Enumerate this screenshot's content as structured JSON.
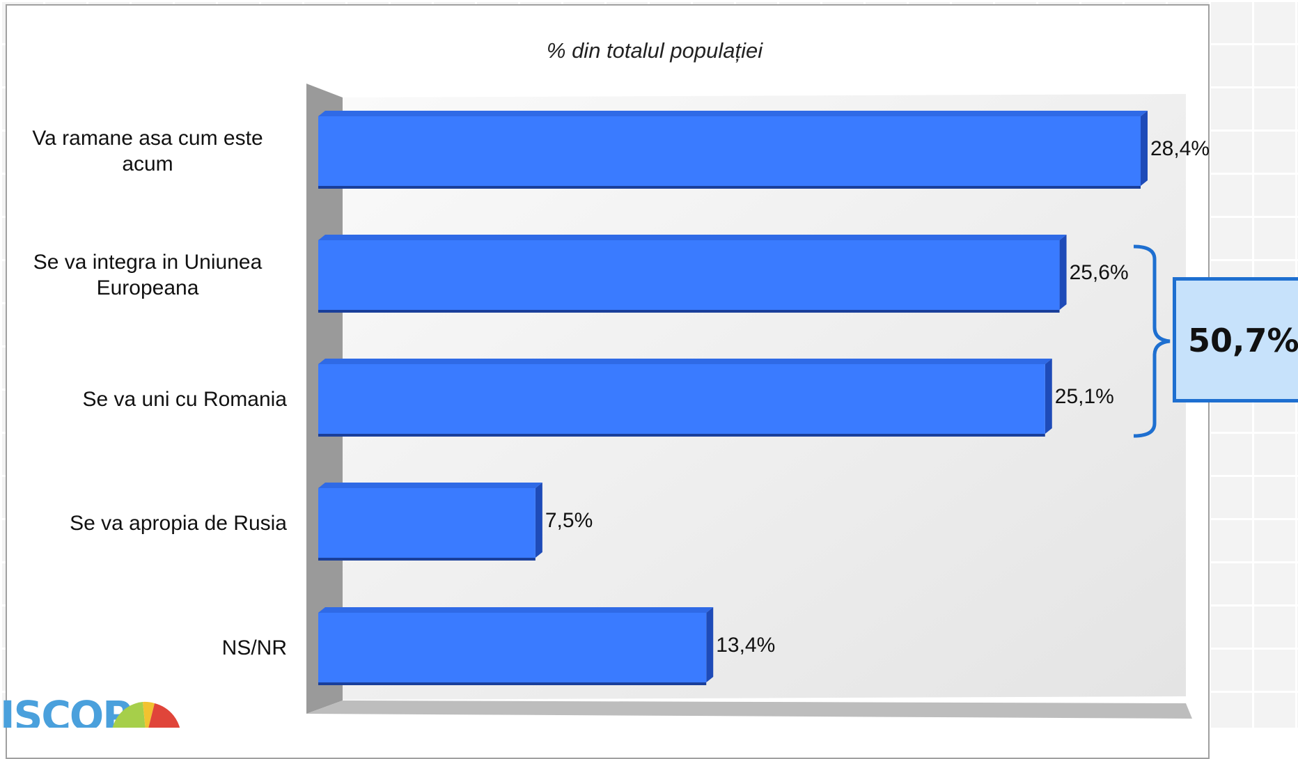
{
  "chart_data": {
    "type": "bar",
    "orientation": "horizontal",
    "title": "% din totalul populației",
    "categories": [
      "Va ramane asa cum este acum",
      "Se va integra in Uniunea Europeana",
      "Se va uni cu Romania",
      "Se va apropia de Rusia",
      "NS/NR"
    ],
    "values": [
      28.4,
      25.6,
      25.1,
      7.5,
      13.4
    ],
    "value_labels": [
      "28,4%",
      "25,6%",
      "25,1%",
      "7,5%",
      "13,4%"
    ],
    "xlim": [
      0,
      28.4
    ],
    "grid": false,
    "bar_color": "#3a7bff",
    "annotation": {
      "label": "50,7%",
      "groups": [
        "Se va integra in Uniunea Europeana",
        "Se va uni cu Romania"
      ],
      "color": "#1e6fd0",
      "box_fill": "#c7e2fb"
    }
  },
  "logo": {
    "text": "ISCOP"
  }
}
